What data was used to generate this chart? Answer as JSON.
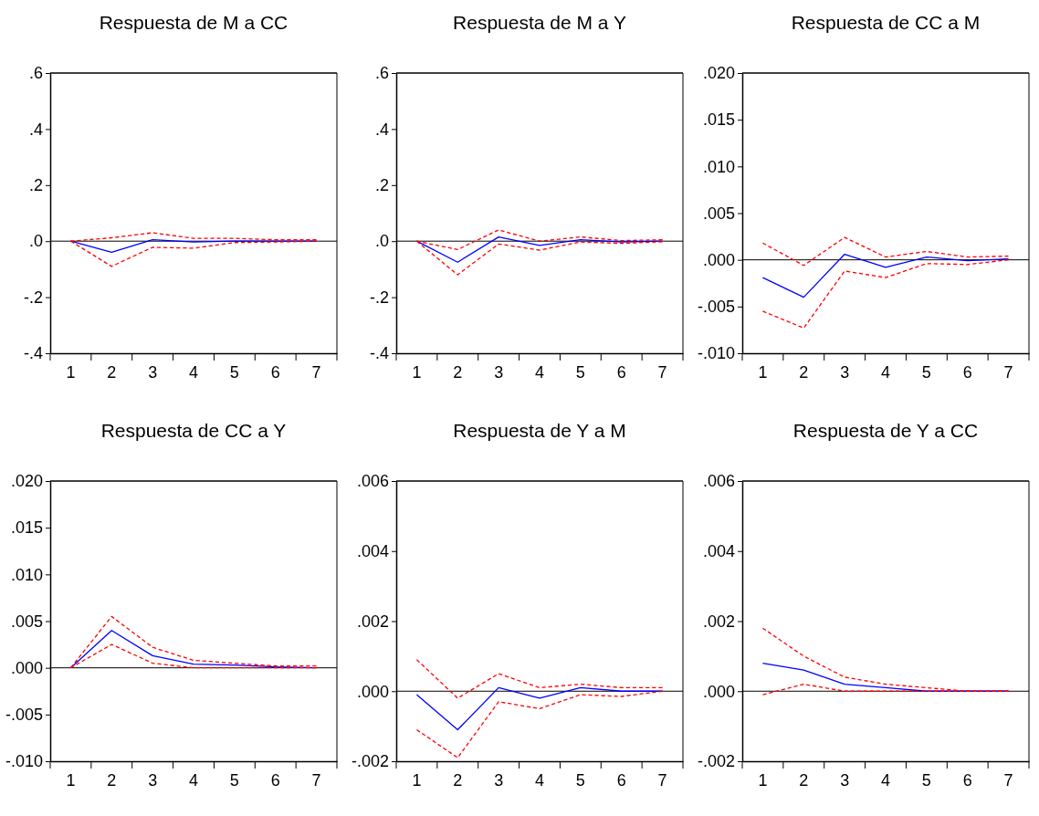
{
  "chart_data": [
    {
      "type": "line",
      "title": "Respuesta de M a CC",
      "categories": [
        "1",
        "2",
        "3",
        "4",
        "5",
        "6",
        "7"
      ],
      "ylim": [
        -0.4,
        0.6
      ],
      "yticks": [
        {
          "value": 0.6,
          "label": ".6"
        },
        {
          "value": 0.4,
          "label": ".4"
        },
        {
          "value": 0.2,
          "label": ".2"
        },
        {
          "value": 0,
          "label": ".0"
        },
        {
          "value": -0.2,
          "label": "-.2"
        },
        {
          "value": -0.4,
          "label": "-.4"
        }
      ],
      "ref_lines": [
        {
          "axis": "y",
          "value": 0,
          "color": "#000000"
        }
      ],
      "series": [
        {
          "color": "#0000ff",
          "line_style": "solid",
          "values": [
            0,
            -0.04,
            0.005,
            -0.003,
            0,
            0,
            0
          ]
        },
        {
          "color": "#ff0000",
          "line_style": "dashed",
          "values": [
            0,
            0.012,
            0.03,
            0.01,
            0.01,
            0.005,
            0.005
          ]
        },
        {
          "color": "#ff0000",
          "line_style": "dashed",
          "values": [
            0,
            -0.09,
            -0.022,
            -0.025,
            -0.005,
            -0.003,
            0
          ]
        }
      ]
    },
    {
      "type": "line",
      "title": "Respuesta de M a Y",
      "categories": [
        "1",
        "2",
        "3",
        "4",
        "5",
        "6",
        "7"
      ],
      "ylim": [
        -0.4,
        0.6
      ],
      "yticks": [
        {
          "value": 0.6,
          "label": ".6"
        },
        {
          "value": 0.4,
          "label": ".4"
        },
        {
          "value": 0.2,
          "label": ".2"
        },
        {
          "value": 0,
          "label": ".0"
        },
        {
          "value": -0.2,
          "label": "-.2"
        },
        {
          "value": -0.4,
          "label": "-.4"
        }
      ],
      "ref_lines": [
        {
          "axis": "y",
          "value": 0,
          "color": "#000000"
        }
      ],
      "series": [
        {
          "color": "#0000ff",
          "line_style": "solid",
          "values": [
            0,
            -0.075,
            0.015,
            -0.015,
            0.005,
            -0.003,
            0
          ]
        },
        {
          "color": "#ff0000",
          "line_style": "dashed",
          "values": [
            0,
            -0.03,
            0.04,
            0,
            0.015,
            0.002,
            0.005
          ]
        },
        {
          "color": "#ff0000",
          "line_style": "dashed",
          "values": [
            0,
            -0.12,
            -0.01,
            -0.032,
            -0.003,
            -0.008,
            -0.002
          ]
        }
      ]
    },
    {
      "type": "line",
      "title": "Respuesta de CC a M",
      "categories": [
        "1",
        "2",
        "3",
        "4",
        "5",
        "6",
        "7"
      ],
      "ylim": [
        -0.01,
        0.02
      ],
      "yticks": [
        {
          "value": 0.02,
          "label": ".020"
        },
        {
          "value": 0.015,
          "label": ".015"
        },
        {
          "value": 0.01,
          "label": ".010"
        },
        {
          "value": 0.005,
          "label": ".005"
        },
        {
          "value": 0,
          "label": ".000"
        },
        {
          "value": -0.005,
          "label": "-.005"
        },
        {
          "value": -0.01,
          "label": "-.010"
        }
      ],
      "ref_lines": [
        {
          "axis": "y",
          "value": 0,
          "color": "#000000"
        }
      ],
      "series": [
        {
          "color": "#0000ff",
          "line_style": "solid",
          "values": [
            -0.0019,
            -0.004,
            0.0006,
            -0.0008,
            0.0003,
            -0.0001,
            0.0001
          ]
        },
        {
          "color": "#ff0000",
          "line_style": "dashed",
          "values": [
            0.0018,
            -0.0006,
            0.0024,
            0.0003,
            0.0009,
            0.0003,
            0.0004
          ]
        },
        {
          "color": "#ff0000",
          "line_style": "dashed",
          "values": [
            -0.0055,
            -0.0073,
            -0.0012,
            -0.0019,
            -0.0004,
            -0.0005,
            0
          ]
        }
      ]
    },
    {
      "type": "line",
      "title": "Respuesta de CC a Y",
      "categories": [
        "1",
        "2",
        "3",
        "4",
        "5",
        "6",
        "7"
      ],
      "ylim": [
        -0.01,
        0.02
      ],
      "yticks": [
        {
          "value": 0.02,
          "label": ".020"
        },
        {
          "value": 0.015,
          "label": ".015"
        },
        {
          "value": 0.01,
          "label": ".010"
        },
        {
          "value": 0.005,
          "label": ".005"
        },
        {
          "value": 0,
          "label": ".000"
        },
        {
          "value": -0.005,
          "label": "-.005"
        },
        {
          "value": -0.01,
          "label": "-.010"
        }
      ],
      "ref_lines": [
        {
          "axis": "y",
          "value": 0,
          "color": "#000000"
        }
      ],
      "series": [
        {
          "color": "#0000ff",
          "line_style": "solid",
          "values": [
            0,
            0.004,
            0.0013,
            0.0004,
            0.0003,
            0.0001,
            0
          ]
        },
        {
          "color": "#ff0000",
          "line_style": "dashed",
          "values": [
            0,
            0.0055,
            0.0022,
            0.0008,
            0.0005,
            0.0002,
            0.0002
          ]
        },
        {
          "color": "#ff0000",
          "line_style": "dashed",
          "values": [
            0,
            0.0025,
            0.0005,
            0,
            0,
            0,
            0
          ]
        }
      ]
    },
    {
      "type": "line",
      "title": "Respuesta de Y a M",
      "categories": [
        "1",
        "2",
        "3",
        "4",
        "5",
        "6",
        "7"
      ],
      "ylim": [
        -0.002,
        0.006
      ],
      "yticks": [
        {
          "value": 0.006,
          "label": ".006"
        },
        {
          "value": 0.004,
          "label": ".004"
        },
        {
          "value": 0.002,
          "label": ".002"
        },
        {
          "value": 0,
          "label": ".000"
        },
        {
          "value": -0.002,
          "label": "-.002"
        }
      ],
      "ref_lines": [
        {
          "axis": "y",
          "value": 0,
          "color": "#000000"
        }
      ],
      "series": [
        {
          "color": "#0000ff",
          "line_style": "solid",
          "values": [
            -0.0001,
            -0.0011,
            0.0001,
            -0.0002,
            0.0001,
            0,
            0
          ]
        },
        {
          "color": "#ff0000",
          "line_style": "dashed",
          "values": [
            0.0009,
            -0.0002,
            0.0005,
            0.0001,
            0.0002,
            0.0001,
            0.0001
          ]
        },
        {
          "color": "#ff0000",
          "line_style": "dashed",
          "values": [
            -0.0011,
            -0.0019,
            -0.0003,
            -0.0005,
            -0.0001,
            -0.00015,
            0
          ]
        }
      ]
    },
    {
      "type": "line",
      "title": "Respuesta de Y a CC",
      "categories": [
        "1",
        "2",
        "3",
        "4",
        "5",
        "6",
        "7"
      ],
      "ylim": [
        -0.002,
        0.006
      ],
      "yticks": [
        {
          "value": 0.006,
          "label": ".006"
        },
        {
          "value": 0.004,
          "label": ".004"
        },
        {
          "value": 0.002,
          "label": ".002"
        },
        {
          "value": 0,
          "label": ".000"
        },
        {
          "value": -0.002,
          "label": "-.002"
        }
      ],
      "ref_lines": [
        {
          "axis": "y",
          "value": 0,
          "color": "#000000"
        }
      ],
      "series": [
        {
          "color": "#0000ff",
          "line_style": "solid",
          "values": [
            0.0008,
            0.0006,
            0.0002,
            0.0001,
            0,
            0,
            0
          ]
        },
        {
          "color": "#ff0000",
          "line_style": "dashed",
          "values": [
            0.0018,
            0.001,
            0.0004,
            0.0002,
            0.0001,
            0,
            0
          ]
        },
        {
          "color": "#ff0000",
          "line_style": "dashed",
          "values": [
            -0.0001,
            0.0002,
            0,
            0,
            0,
            0,
            0
          ]
        }
      ]
    }
  ]
}
